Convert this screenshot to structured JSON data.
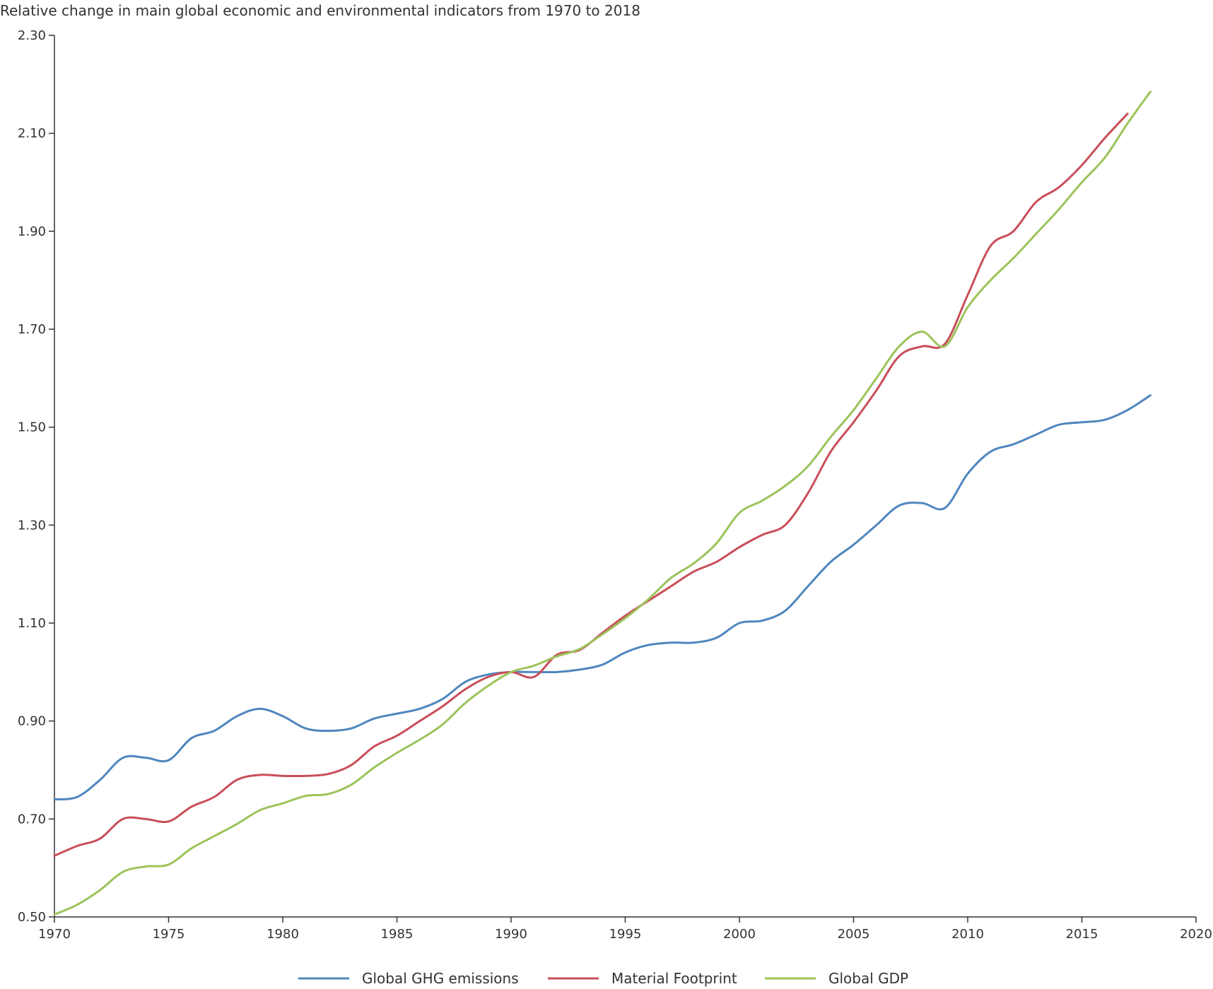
{
  "chart_data": {
    "type": "line",
    "title": "Relative change in main global economic and environmental indicators from 1970 to 2018",
    "xlabel": "",
    "ylabel": "",
    "xlim": [
      1970,
      2020
    ],
    "ylim": [
      0.5,
      2.3
    ],
    "x_ticks": [
      "1970",
      "1975",
      "1980",
      "1985",
      "1990",
      "1995",
      "2000",
      "2005",
      "2010",
      "2015",
      "2020"
    ],
    "y_ticks": [
      "0.50",
      "0.70",
      "0.90",
      "1.10",
      "1.30",
      "1.50",
      "1.70",
      "1.90",
      "2.10",
      "2.30"
    ],
    "grid": false,
    "legend_position": "bottom",
    "series": [
      {
        "name": "Global GHG emissions",
        "color": "#4f86be",
        "x": [
          1970,
          1971,
          1972,
          1973,
          1974,
          1975,
          1976,
          1977,
          1978,
          1979,
          1980,
          1981,
          1982,
          1983,
          1984,
          1985,
          1986,
          1987,
          1988,
          1989,
          1990,
          1991,
          1992,
          1993,
          1994,
          1995,
          1996,
          1997,
          1998,
          1999,
          2000,
          2001,
          2002,
          2003,
          2004,
          2005,
          2006,
          2007,
          2008,
          2009,
          2010,
          2011,
          2012,
          2013,
          2014,
          2015,
          2016,
          2017,
          2018
        ],
        "values": [
          0.74,
          0.745,
          0.78,
          0.825,
          0.825,
          0.82,
          0.865,
          0.88,
          0.91,
          0.925,
          0.91,
          0.885,
          0.88,
          0.885,
          0.905,
          0.915,
          0.925,
          0.945,
          0.98,
          0.995,
          1.0,
          1.0,
          1.0,
          1.005,
          1.015,
          1.04,
          1.055,
          1.06,
          1.06,
          1.07,
          1.1,
          1.105,
          1.125,
          1.175,
          1.225,
          1.26,
          1.3,
          1.34,
          1.345,
          1.335,
          1.405,
          1.45,
          1.465,
          1.485,
          1.505,
          1.51,
          1.515,
          1.535,
          1.565
        ]
      },
      {
        "name": "Material Footprint",
        "color": "#c94e5a",
        "x": [
          1970,
          1971,
          1972,
          1973,
          1974,
          1975,
          1976,
          1977,
          1978,
          1979,
          1980,
          1981,
          1982,
          1983,
          1984,
          1985,
          1986,
          1987,
          1988,
          1989,
          1990,
          1991,
          1992,
          1993,
          1994,
          1995,
          1996,
          1997,
          1998,
          1999,
          2000,
          2001,
          2002,
          2003,
          2004,
          2005,
          2006,
          2007,
          2008,
          2009,
          2010,
          2011,
          2012,
          2013,
          2014,
          2015,
          2016,
          2017
        ],
        "values": [
          0.625,
          0.645,
          0.66,
          0.7,
          0.7,
          0.695,
          0.725,
          0.745,
          0.78,
          0.79,
          0.788,
          0.788,
          0.792,
          0.81,
          0.848,
          0.87,
          0.9,
          0.93,
          0.965,
          0.99,
          1.0,
          0.99,
          1.035,
          1.045,
          1.08,
          1.115,
          1.145,
          1.175,
          1.205,
          1.225,
          1.255,
          1.28,
          1.3,
          1.365,
          1.45,
          1.51,
          1.575,
          1.645,
          1.665,
          1.67,
          1.77,
          1.87,
          1.9,
          1.96,
          1.99,
          2.035,
          2.09,
          2.14
        ]
      },
      {
        "name": "Global GDP",
        "color": "#9cc35a",
        "x": [
          1970,
          1971,
          1972,
          1973,
          1974,
          1975,
          1976,
          1977,
          1978,
          1979,
          1980,
          1981,
          1982,
          1983,
          1984,
          1985,
          1986,
          1987,
          1988,
          1989,
          1990,
          1991,
          1992,
          1993,
          1994,
          1995,
          1996,
          1997,
          1998,
          1999,
          2000,
          2001,
          2002,
          2003,
          2004,
          2005,
          2006,
          2007,
          2008,
          2009,
          2010,
          2011,
          2012,
          2013,
          2014,
          2015,
          2016,
          2017,
          2018
        ],
        "values": [
          0.505,
          0.525,
          0.555,
          0.592,
          0.603,
          0.607,
          0.64,
          0.665,
          0.69,
          0.718,
          0.732,
          0.747,
          0.751,
          0.77,
          0.805,
          0.835,
          0.862,
          0.893,
          0.937,
          0.972,
          1.0,
          1.013,
          1.032,
          1.047,
          1.077,
          1.11,
          1.148,
          1.192,
          1.222,
          1.263,
          1.325,
          1.35,
          1.38,
          1.42,
          1.48,
          1.535,
          1.6,
          1.665,
          1.695,
          1.665,
          1.745,
          1.8,
          1.845,
          1.895,
          1.945,
          2.0,
          2.05,
          2.12,
          2.185
        ]
      }
    ]
  }
}
